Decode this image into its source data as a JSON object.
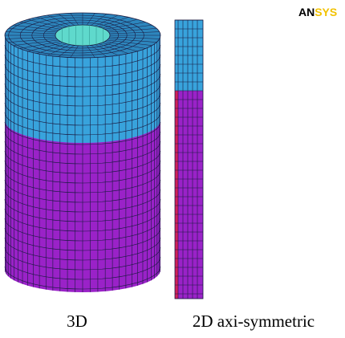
{
  "logo": "ANSYS",
  "labels": [
    "3D",
    "2D axi-symmetric"
  ]
}
